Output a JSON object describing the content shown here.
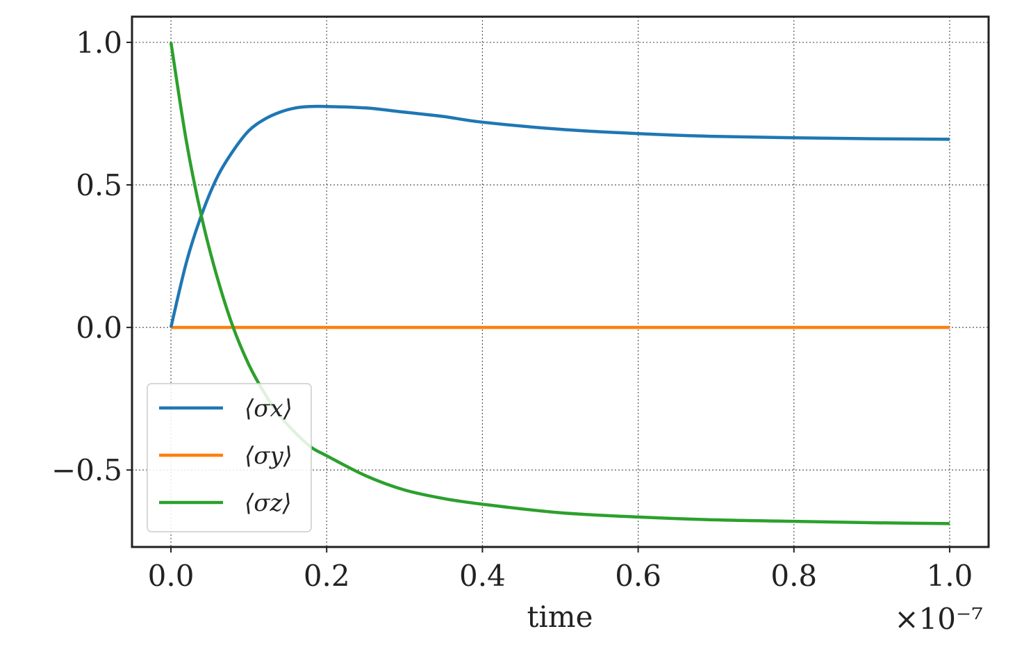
{
  "chart_data": {
    "type": "line",
    "title": "",
    "xlabel": "time",
    "ylabel": "",
    "x_offset_label": "×10⁻⁷",
    "x_ticks": [
      "0.0",
      "0.2",
      "0.4",
      "0.6",
      "0.8",
      "1.0"
    ],
    "y_ticks": [
      "1.0",
      "0.5",
      "0.0",
      "−0.5"
    ],
    "xlim": [
      -0.05,
      1.05
    ],
    "ylim": [
      -0.77,
      1.09
    ],
    "grid": true,
    "legend_position": "lower-left",
    "series": [
      {
        "name": "⟨σx⟩",
        "color": "#1f77b4",
        "x": [
          0,
          0.02,
          0.04,
          0.06,
          0.08,
          0.1,
          0.12,
          0.14,
          0.16,
          0.18,
          0.2,
          0.25,
          0.3,
          0.35,
          0.4,
          0.5,
          0.6,
          0.7,
          0.8,
          0.9,
          1.0
        ],
        "values": [
          0.0,
          0.23,
          0.4,
          0.53,
          0.62,
          0.69,
          0.73,
          0.755,
          0.77,
          0.775,
          0.775,
          0.77,
          0.755,
          0.74,
          0.72,
          0.695,
          0.68,
          0.67,
          0.665,
          0.662,
          0.66
        ]
      },
      {
        "name": "⟨σy⟩",
        "color": "#ff7f0e",
        "x": [
          0,
          0.25,
          0.5,
          0.75,
          1.0
        ],
        "values": [
          0.0,
          0.0,
          0.0,
          0.0,
          0.0
        ]
      },
      {
        "name": "⟨σz⟩",
        "color": "#2ca02c",
        "x": [
          0,
          0.02,
          0.04,
          0.06,
          0.08,
          0.1,
          0.12,
          0.14,
          0.16,
          0.18,
          0.2,
          0.25,
          0.3,
          0.35,
          0.4,
          0.5,
          0.6,
          0.7,
          0.8,
          0.9,
          1.0
        ],
        "values": [
          1.0,
          0.65,
          0.38,
          0.17,
          0.0,
          -0.13,
          -0.23,
          -0.31,
          -0.37,
          -0.42,
          -0.45,
          -0.52,
          -0.57,
          -0.6,
          -0.62,
          -0.65,
          -0.665,
          -0.675,
          -0.68,
          -0.685,
          -0.688
        ]
      }
    ]
  }
}
